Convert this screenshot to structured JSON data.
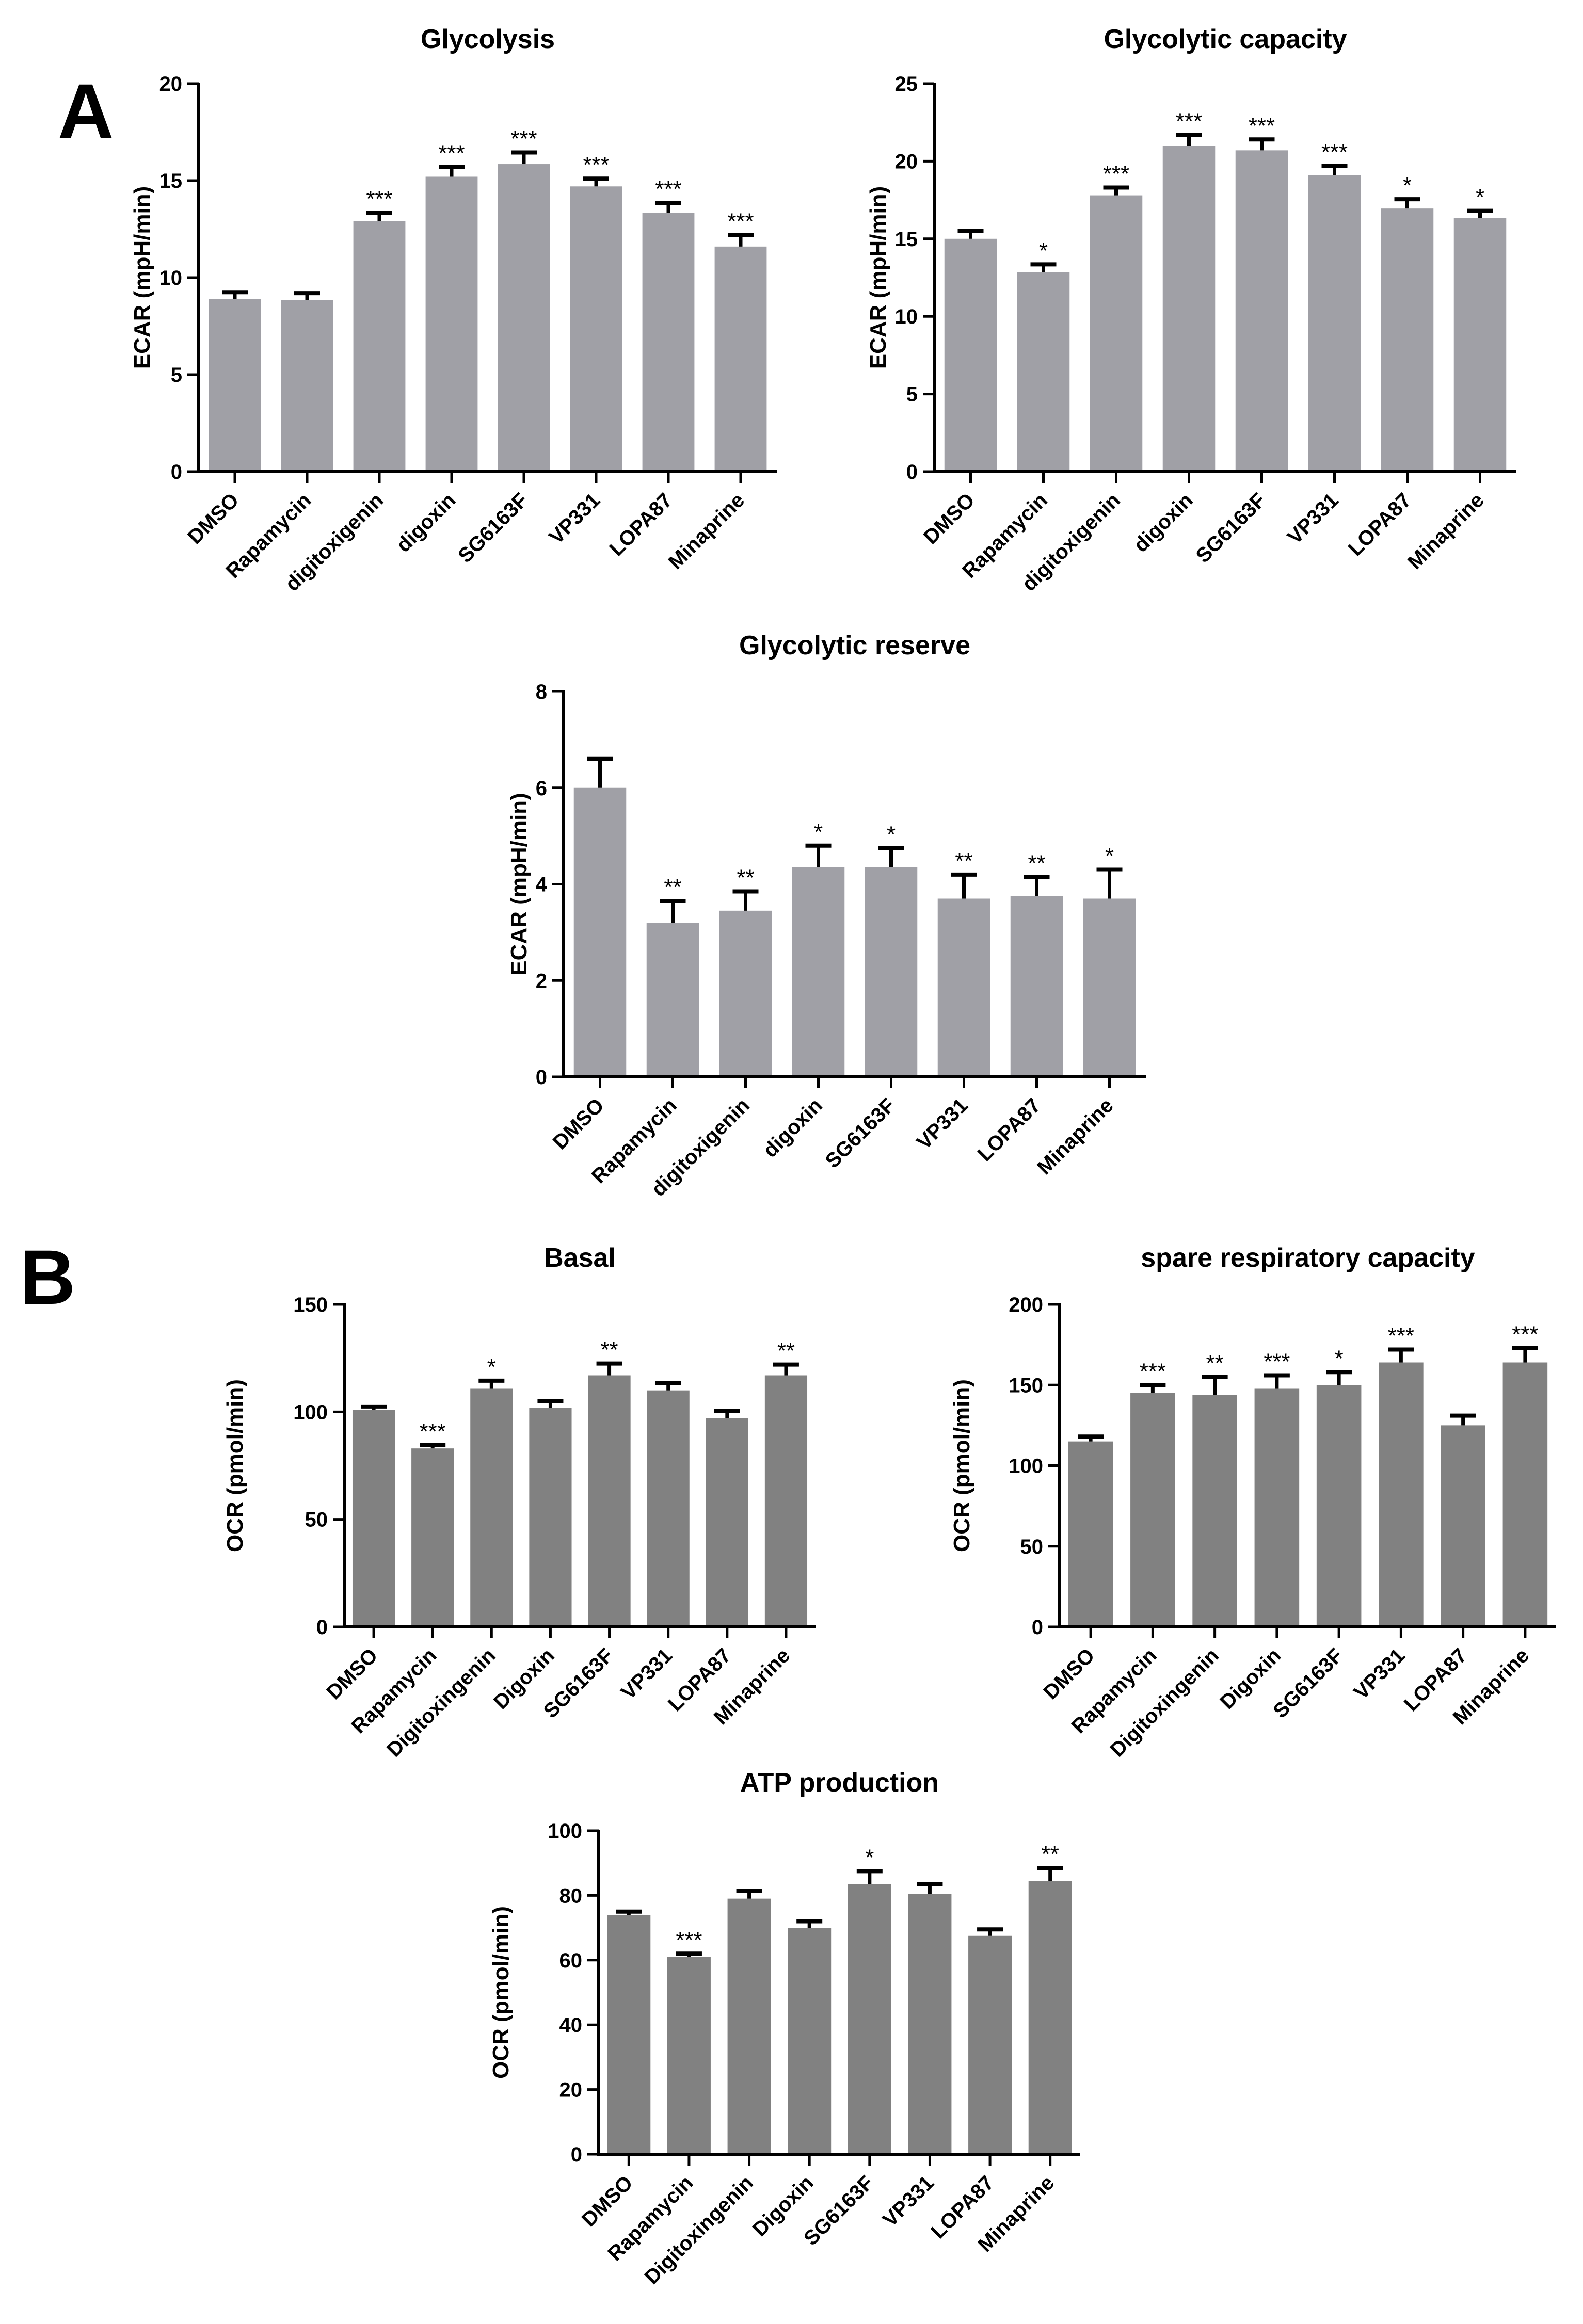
{
  "panels": [
    {
      "letter": "A"
    },
    {
      "letter": "B"
    }
  ],
  "chart_data": [
    {
      "type": "bar",
      "title": "Glycolysis",
      "xlabel": "",
      "ylabel": "ECAR (mpH/min)",
      "ylim": [
        0,
        20
      ],
      "yticks": [
        0,
        5,
        10,
        15,
        20
      ],
      "categories": [
        "DMSO",
        "Rapamycin",
        "digitoxigenin",
        "digoxin",
        "SG6163F",
        "VP331",
        "LOPA87",
        "Minaprine"
      ],
      "values": [
        8.9,
        8.85,
        12.9,
        15.2,
        15.85,
        14.7,
        13.35,
        11.6
      ],
      "errors": [
        0.35,
        0.35,
        0.45,
        0.5,
        0.6,
        0.4,
        0.5,
        0.6
      ],
      "significance": [
        "",
        "",
        "***",
        "***",
        "***",
        "***",
        "***",
        "***"
      ],
      "bar_color": "#a0a0a6"
    },
    {
      "type": "bar",
      "title": "Glycolytic capacity",
      "xlabel": "",
      "ylabel": "ECAR (mpH/min)",
      "ylim": [
        0,
        25
      ],
      "yticks": [
        0,
        5,
        10,
        15,
        20,
        25
      ],
      "categories": [
        "DMSO",
        "Rapamycin",
        "digitoxigenin",
        "digoxin",
        "SG6163F",
        "VP331",
        "LOPA87",
        "Minaprine"
      ],
      "values": [
        15.0,
        12.85,
        17.8,
        21.0,
        20.7,
        19.1,
        16.95,
        16.35
      ],
      "errors": [
        0.5,
        0.5,
        0.5,
        0.7,
        0.7,
        0.6,
        0.6,
        0.45
      ],
      "significance": [
        "",
        "*",
        "***",
        "***",
        "***",
        "***",
        "*",
        "*"
      ],
      "bar_color": "#a0a0a6"
    },
    {
      "type": "bar",
      "title": "Glycolytic reserve",
      "xlabel": "",
      "ylabel": "ECAR (mpH/min)",
      "ylim": [
        0,
        8
      ],
      "yticks": [
        0,
        2,
        4,
        6,
        8
      ],
      "categories": [
        "DMSO",
        "Rapamycin",
        "digitoxigenin",
        "digoxin",
        "SG6163F",
        "VP331",
        "LOPA87",
        "Minaprine"
      ],
      "values": [
        6.0,
        3.2,
        3.45,
        4.35,
        4.35,
        3.7,
        3.75,
        3.7
      ],
      "errors": [
        0.6,
        0.45,
        0.4,
        0.45,
        0.4,
        0.5,
        0.4,
        0.6
      ],
      "significance": [
        "",
        "**",
        "**",
        "*",
        "*",
        "**",
        "**",
        "*"
      ],
      "bar_color": "#a0a0a6"
    },
    {
      "type": "bar",
      "title": "Basal",
      "xlabel": "",
      "ylabel": "OCR (pmol/min)",
      "ylim": [
        0,
        150
      ],
      "yticks": [
        0,
        50,
        100,
        150
      ],
      "categories": [
        "DMSO",
        "Rapamycin",
        "Digitoxingenin",
        "Digoxin",
        "SG6163F",
        "VP331",
        "LOPA87",
        "Minaprine"
      ],
      "values": [
        101,
        83,
        111,
        102,
        117,
        110,
        97,
        117
      ],
      "errors": [
        1.5,
        1.5,
        3.5,
        3,
        5.5,
        3.5,
        3.5,
        5
      ],
      "significance": [
        "",
        "***",
        "*",
        "",
        "**",
        "",
        "",
        "**"
      ],
      "bar_color": "#818181"
    },
    {
      "type": "bar",
      "title": "spare respiratory capacity",
      "xlabel": "",
      "ylabel": "OCR (pmol/min)",
      "ylim": [
        0,
        200
      ],
      "yticks": [
        0,
        50,
        100,
        150,
        200
      ],
      "categories": [
        "DMSO",
        "Rapamycin",
        "Digitoxingenin",
        "Digoxin",
        "SG6163F",
        "VP331",
        "LOPA87",
        "Minaprine"
      ],
      "values": [
        115,
        145,
        144,
        148,
        150,
        164,
        125,
        164
      ],
      "errors": [
        3,
        5,
        11,
        8,
        8,
        8,
        6,
        9
      ],
      "significance": [
        "",
        "***",
        "**",
        "***",
        "*",
        "***",
        "",
        "***"
      ],
      "bar_color": "#818181"
    },
    {
      "type": "bar",
      "title": "ATP production",
      "xlabel": "",
      "ylabel": "OCR (pmol/min)",
      "ylim": [
        0,
        100
      ],
      "yticks": [
        0,
        20,
        40,
        60,
        80,
        100
      ],
      "categories": [
        "DMSO",
        "Rapamycin",
        "Digitoxingenin",
        "Digoxin",
        "SG6163F",
        "VP331",
        "LOPA87",
        "Minaprine"
      ],
      "values": [
        74,
        61,
        79,
        70,
        83.5,
        80.5,
        67.5,
        84.5
      ],
      "errors": [
        1,
        1,
        2.5,
        2,
        4,
        3,
        2,
        4
      ],
      "significance": [
        "",
        "***",
        "",
        "",
        "*",
        "",
        "",
        "**"
      ],
      "bar_color": "#818181"
    }
  ]
}
